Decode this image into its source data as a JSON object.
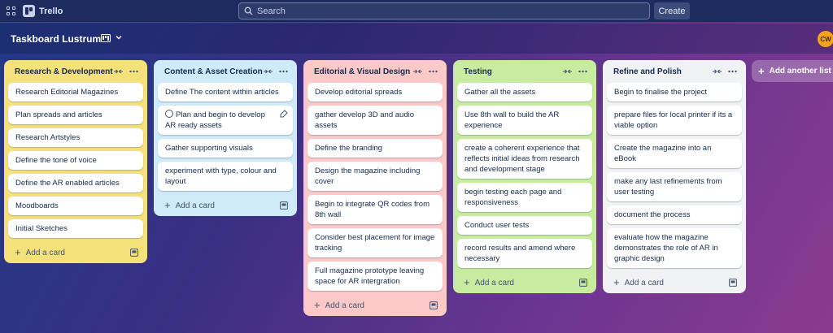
{
  "topbar": {
    "app_name": "Trello",
    "search_placeholder": "Search",
    "create_label": "Create"
  },
  "board": {
    "title": "Taskboard Lustrum",
    "avatar_initials": "CW",
    "add_list_label": "Add another list"
  },
  "lists": [
    {
      "title": "Research & Development",
      "color": "#f5e17a",
      "cards": [
        "Research Editorial Magazines",
        "Plan spreads and articles",
        "Research Artstyles",
        "Define the tone of voice",
        "Define the AR enabled articles",
        "Moodboards",
        "Initial Sketches"
      ],
      "add_label": "Add a card"
    },
    {
      "title": "Content & Asset Creation",
      "color": "#cfeaf8",
      "cards": [
        "Define The content within articles",
        "Plan and begin to develop AR ready assets",
        "Gather supporting visuals",
        "experiment with type, colour and layout"
      ],
      "add_label": "Add a card"
    },
    {
      "title": "Editorial & Visual Design",
      "color": "#fcc9c8",
      "cards": [
        "Develop editorial spreads",
        "gather develop 3D and audio assets",
        "Define the branding",
        "Design the magazine including cover",
        "Begin to integrate QR codes from 8th wall",
        "Consider best placement for image tracking",
        "Full magazine prototype leaving space for AR intergration"
      ],
      "add_label": "Add a card"
    },
    {
      "title": "Testing",
      "color": "#c8ec9f",
      "cards": [
        "Gather all the assets",
        "Use 8th wall to build the AR experience",
        "create a coherent experience that reflects initial ideas from research and development stage",
        "begin testing each page and responsiveness",
        "Conduct user tests",
        "record results and amend where necessary"
      ],
      "add_label": "Add a card"
    },
    {
      "title": "Refine and Polish",
      "color": "#f1f2f4",
      "cards": [
        "Begin to finalise the project",
        "prepare files for local printer if its a viable option",
        "Create the magazine into an eBook",
        "make any last refinements from user testing",
        "document the process",
        "evaluate how the magazine demonstrates the role of AR in graphic design"
      ],
      "add_label": "Add a card"
    }
  ]
}
